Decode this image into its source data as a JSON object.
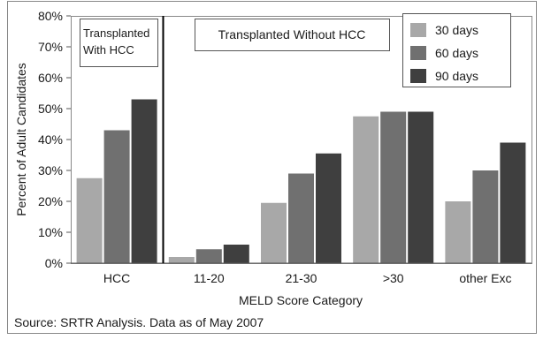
{
  "chart_data": {
    "type": "bar",
    "categories": [
      "HCC",
      "11-20",
      "21-30",
      ">30",
      "other Exc"
    ],
    "series": [
      {
        "name": "30 days",
        "color": "#a8a8a8",
        "values": [
          27.5,
          2,
          19.5,
          47.5,
          20
        ]
      },
      {
        "name": "60 days",
        "color": "#707070",
        "values": [
          43,
          4.5,
          29,
          49,
          30
        ]
      },
      {
        "name": "90 days",
        "color": "#3f3f3f",
        "values": [
          53,
          6,
          35.5,
          49,
          39
        ]
      }
    ],
    "title": "",
    "xlabel": "MELD Score Category",
    "ylabel": "Percent of Adult Candidates",
    "ylim": [
      0,
      80
    ],
    "yticks": [
      "0%",
      "10%",
      "20%",
      "30%",
      "40%",
      "50%",
      "60%",
      "70%",
      "80%"
    ],
    "grid": false,
    "legend_position": "top-right",
    "annotations": {
      "with_hcc_line1": "Transplanted",
      "with_hcc_line2": "With HCC",
      "without_hcc": "Transplanted Without HCC"
    },
    "source": "Source: SRTR Analysis. Data as of May 2007"
  }
}
